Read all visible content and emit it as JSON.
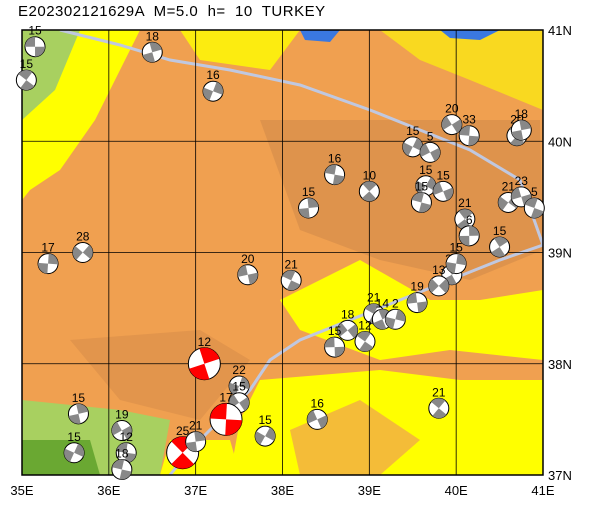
{
  "header": {
    "title": "E202302121629A  M=5.0  h=  10  TURKEY"
  },
  "map": {
    "lon_range": [
      35,
      41
    ],
    "lat_range": [
      37,
      41
    ],
    "lon_ticks": [
      "35E",
      "36E",
      "37E",
      "38E",
      "39E",
      "40E",
      "41E"
    ],
    "lat_ticks": [
      "37N",
      "38N",
      "39N",
      "40N",
      "41N"
    ],
    "colors": {
      "lowland": "#ffff00",
      "green": "#a8d060",
      "darkgreen": "#6aa832",
      "tan": "#f0a050",
      "brown": "#d08848",
      "sea": "#3a78e0",
      "fault": "#c0c8e0",
      "red": "#ff0000",
      "beachball_fill": "#888888"
    }
  },
  "events": [
    {
      "label": "15",
      "lon": 35.15,
      "lat": 40.85,
      "red": false
    },
    {
      "label": "15",
      "lon": 35.05,
      "lat": 40.55,
      "red": false
    },
    {
      "label": "18",
      "lon": 36.5,
      "lat": 40.8,
      "red": false
    },
    {
      "label": "16",
      "lon": 37.2,
      "lat": 40.45,
      "red": false
    },
    {
      "label": "20",
      "lon": 39.95,
      "lat": 40.15,
      "red": false
    },
    {
      "label": "33",
      "lon": 40.15,
      "lat": 40.05,
      "red": false
    },
    {
      "label": "20",
      "lon": 40.7,
      "lat": 40.05,
      "red": false
    },
    {
      "label": "18",
      "lon": 40.75,
      "lat": 40.1,
      "red": false
    },
    {
      "label": "15",
      "lon": 39.5,
      "lat": 39.95,
      "red": false
    },
    {
      "label": "5",
      "lon": 39.7,
      "lat": 39.9,
      "red": false
    },
    {
      "label": "16",
      "lon": 38.6,
      "lat": 39.7,
      "red": false
    },
    {
      "label": "10",
      "lon": 39.0,
      "lat": 39.55,
      "red": false
    },
    {
      "label": "15",
      "lon": 38.3,
      "lat": 39.4,
      "red": false
    },
    {
      "label": "15",
      "lon": 39.65,
      "lat": 39.6,
      "red": false
    },
    {
      "label": "15",
      "lon": 39.85,
      "lat": 39.55,
      "red": false
    },
    {
      "label": "15",
      "lon": 39.6,
      "lat": 39.45,
      "red": false
    },
    {
      "label": "21",
      "lon": 40.1,
      "lat": 39.3,
      "red": false
    },
    {
      "label": "6",
      "lon": 40.15,
      "lat": 39.15,
      "red": false
    },
    {
      "label": "21",
      "lon": 40.6,
      "lat": 39.45,
      "red": false
    },
    {
      "label": "23",
      "lon": 40.75,
      "lat": 39.5,
      "red": false
    },
    {
      "label": "5",
      "lon": 40.9,
      "lat": 39.4,
      "red": false
    },
    {
      "label": "15",
      "lon": 40.5,
      "lat": 39.05,
      "red": false
    },
    {
      "label": "17",
      "lon": 35.3,
      "lat": 38.9,
      "red": false
    },
    {
      "label": "28",
      "lon": 35.7,
      "lat": 39.0,
      "red": false
    },
    {
      "label": "20",
      "lon": 37.6,
      "lat": 38.8,
      "red": false
    },
    {
      "label": "21",
      "lon": 38.1,
      "lat": 38.75,
      "red": false
    },
    {
      "label": "23",
      "lon": 39.95,
      "lat": 38.8,
      "red": false
    },
    {
      "label": "15",
      "lon": 40.0,
      "lat": 38.9,
      "red": false
    },
    {
      "label": "13",
      "lon": 39.8,
      "lat": 38.7,
      "red": false
    },
    {
      "label": "19",
      "lon": 39.55,
      "lat": 38.55,
      "red": false
    },
    {
      "label": "21",
      "lon": 39.05,
      "lat": 38.45,
      "red": false
    },
    {
      "label": "14",
      "lon": 39.15,
      "lat": 38.4,
      "red": false
    },
    {
      "label": "2",
      "lon": 39.3,
      "lat": 38.4,
      "red": false
    },
    {
      "label": "18",
      "lon": 38.75,
      "lat": 38.3,
      "red": false
    },
    {
      "label": "15",
      "lon": 38.6,
      "lat": 38.15,
      "red": false
    },
    {
      "label": "12",
      "lon": 38.95,
      "lat": 38.2,
      "red": false
    },
    {
      "label": "12",
      "lon": 37.1,
      "lat": 38.0,
      "red": true
    },
    {
      "label": "22",
      "lon": 37.5,
      "lat": 37.8,
      "red": false
    },
    {
      "label": "15",
      "lon": 37.5,
      "lat": 37.65,
      "red": false
    },
    {
      "label": "17",
      "lon": 37.35,
      "lat": 37.5,
      "red": true
    },
    {
      "label": "21",
      "lon": 39.8,
      "lat": 37.6,
      "red": false
    },
    {
      "label": "15",
      "lon": 35.65,
      "lat": 37.55,
      "red": false
    },
    {
      "label": "15",
      "lon": 35.6,
      "lat": 37.2,
      "red": false
    },
    {
      "label": "19",
      "lon": 36.15,
      "lat": 37.4,
      "red": false
    },
    {
      "label": "12",
      "lon": 36.2,
      "lat": 37.2,
      "red": false
    },
    {
      "label": "25",
      "lon": 36.85,
      "lat": 37.2,
      "red": true
    },
    {
      "label": "21",
      "lon": 37.0,
      "lat": 37.3,
      "red": false
    },
    {
      "label": "15",
      "lon": 37.8,
      "lat": 37.35,
      "red": false
    },
    {
      "label": "16",
      "lon": 38.4,
      "lat": 37.5,
      "red": false
    },
    {
      "label": "18",
      "lon": 36.15,
      "lat": 37.05,
      "red": false
    }
  ]
}
